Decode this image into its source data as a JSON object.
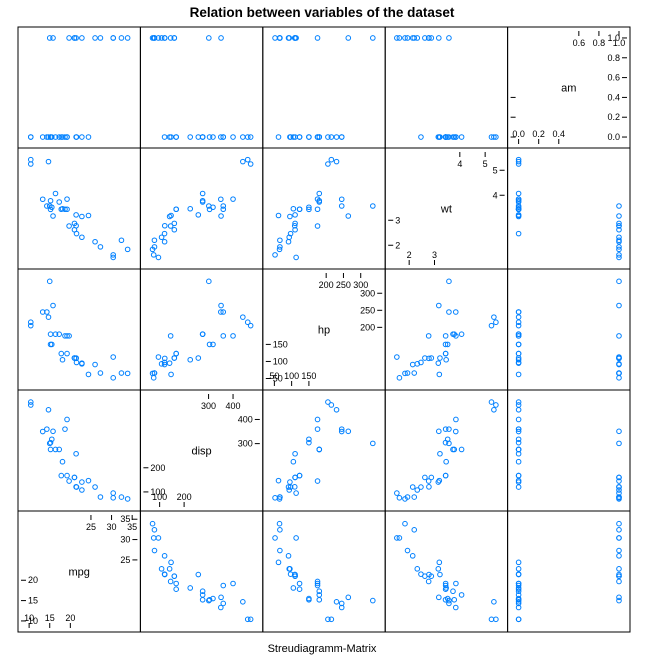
{
  "title": "Relation between variables of the dataset",
  "xlabel": "Streudiagramm-Matrix",
  "style": {
    "point_color": "#0080ff",
    "frame_color": "#000000",
    "background": "#ffffff"
  },
  "chart_data": {
    "type": "scatter-matrix",
    "title": "Relation between variables of the dataset",
    "xlabel": "Streudiagramm-Matrix",
    "variables": [
      {
        "name": "mpg",
        "range": [
          9.0,
          35.3
        ],
        "upper_ticks": [
          25,
          30,
          35
        ],
        "upper_tick_labels": [
          "25",
          "30",
          "35"
        ],
        "lower_ticks": [
          10,
          15,
          20
        ],
        "lower_tick_labels": [
          "10",
          "15",
          "20"
        ],
        "panel_ticks": [
          25,
          30,
          35
        ],
        "panel_tick_labels": [
          "25",
          "30",
          "35"
        ]
      },
      {
        "name": "disp",
        "range": [
          50,
          493
        ],
        "upper_ticks": [
          300,
          400
        ],
        "upper_tick_labels": [
          "300",
          "400"
        ],
        "lower_ticks": [
          100,
          200
        ],
        "lower_tick_labels": [
          "100",
          "200"
        ],
        "panel_ticks": [
          300,
          400
        ],
        "panel_tick_labels": [
          "300",
          "400"
        ]
      },
      {
        "name": "hp",
        "range": [
          36.8,
          350.6
        ],
        "upper_ticks": [
          200,
          250,
          300
        ],
        "upper_tick_labels": [
          "200",
          "250",
          "300"
        ],
        "lower_ticks": [
          50,
          100,
          150
        ],
        "lower_tick_labels": [
          "50",
          "100",
          "150"
        ],
        "panel_ticks": [
          200,
          250,
          300
        ],
        "panel_tick_labels": [
          "200",
          "250",
          "300"
        ]
      },
      {
        "name": "wt",
        "range": [
          1.33,
          5.61
        ],
        "upper_ticks": [
          4,
          5
        ],
        "upper_tick_labels": [
          "4",
          "5"
        ],
        "lower_ticks": [
          2,
          3
        ],
        "lower_tick_labels": [
          "2",
          "3"
        ],
        "panel_ticks": [
          4,
          5
        ],
        "panel_tick_labels": [
          "4",
          "5"
        ]
      },
      {
        "name": "am",
        "range": [
          -0.04,
          1.04
        ],
        "upper_ticks": [
          0.6,
          0.8,
          1.0
        ],
        "upper_tick_labels": [
          "0.6",
          "0.8",
          "1.0"
        ],
        "lower_ticks": [
          0.0,
          0.2,
          0.4
        ],
        "lower_tick_labels": [
          "0.0",
          "0.2",
          "0.4"
        ],
        "panel_ticks": [
          1.0,
          0.8,
          0.6
        ],
        "panel_tick_labels": [
          "1.0",
          "0.8",
          "0.6"
        ],
        "panel_ticks_low": [
          0.4,
          0.2,
          0.0
        ],
        "panel_tick_labels_low": [
          "0.4",
          "0.2",
          "0.0"
        ]
      }
    ],
    "observations": [
      {
        "mpg": 21.0,
        "disp": 160.0,
        "hp": 110,
        "wt": 2.62,
        "am": 1
      },
      {
        "mpg": 21.0,
        "disp": 160.0,
        "hp": 110,
        "wt": 2.875,
        "am": 1
      },
      {
        "mpg": 22.8,
        "disp": 108.0,
        "hp": 93,
        "wt": 2.32,
        "am": 1
      },
      {
        "mpg": 21.4,
        "disp": 258.0,
        "hp": 110,
        "wt": 3.215,
        "am": 0
      },
      {
        "mpg": 18.7,
        "disp": 360.0,
        "hp": 175,
        "wt": 3.44,
        "am": 0
      },
      {
        "mpg": 18.1,
        "disp": 225.0,
        "hp": 105,
        "wt": 3.46,
        "am": 0
      },
      {
        "mpg": 14.3,
        "disp": 360.0,
        "hp": 245,
        "wt": 3.57,
        "am": 0
      },
      {
        "mpg": 24.4,
        "disp": 146.7,
        "hp": 62,
        "wt": 3.19,
        "am": 0
      },
      {
        "mpg": 22.8,
        "disp": 140.8,
        "hp": 95,
        "wt": 3.15,
        "am": 0
      },
      {
        "mpg": 19.2,
        "disp": 167.6,
        "hp": 123,
        "wt": 3.44,
        "am": 0
      },
      {
        "mpg": 17.8,
        "disp": 167.6,
        "hp": 123,
        "wt": 3.44,
        "am": 0
      },
      {
        "mpg": 16.4,
        "disp": 275.8,
        "hp": 180,
        "wt": 4.07,
        "am": 0
      },
      {
        "mpg": 17.3,
        "disp": 275.8,
        "hp": 180,
        "wt": 3.73,
        "am": 0
      },
      {
        "mpg": 15.2,
        "disp": 275.8,
        "hp": 180,
        "wt": 3.78,
        "am": 0
      },
      {
        "mpg": 10.4,
        "disp": 472.0,
        "hp": 205,
        "wt": 5.25,
        "am": 0
      },
      {
        "mpg": 10.4,
        "disp": 460.0,
        "hp": 215,
        "wt": 5.424,
        "am": 0
      },
      {
        "mpg": 14.7,
        "disp": 440.0,
        "hp": 230,
        "wt": 5.345,
        "am": 0
      },
      {
        "mpg": 32.4,
        "disp": 78.7,
        "hp": 66,
        "wt": 2.2,
        "am": 1
      },
      {
        "mpg": 30.4,
        "disp": 75.7,
        "hp": 52,
        "wt": 1.615,
        "am": 1
      },
      {
        "mpg": 33.9,
        "disp": 71.1,
        "hp": 65,
        "wt": 1.835,
        "am": 1
      },
      {
        "mpg": 21.5,
        "disp": 120.1,
        "hp": 97,
        "wt": 2.465,
        "am": 0
      },
      {
        "mpg": 15.5,
        "disp": 318.0,
        "hp": 150,
        "wt": 3.52,
        "am": 0
      },
      {
        "mpg": 15.2,
        "disp": 304.0,
        "hp": 150,
        "wt": 3.435,
        "am": 0
      },
      {
        "mpg": 13.3,
        "disp": 350.0,
        "hp": 245,
        "wt": 3.84,
        "am": 0
      },
      {
        "mpg": 19.2,
        "disp": 400.0,
        "hp": 175,
        "wt": 3.845,
        "am": 0
      },
      {
        "mpg": 27.3,
        "disp": 79.0,
        "hp": 66,
        "wt": 1.935,
        "am": 1
      },
      {
        "mpg": 26.0,
        "disp": 120.3,
        "hp": 91,
        "wt": 2.14,
        "am": 1
      },
      {
        "mpg": 30.4,
        "disp": 95.1,
        "hp": 113,
        "wt": 1.513,
        "am": 1
      },
      {
        "mpg": 15.8,
        "disp": 351.0,
        "hp": 264,
        "wt": 3.17,
        "am": 1
      },
      {
        "mpg": 19.7,
        "disp": 145.0,
        "hp": 175,
        "wt": 2.77,
        "am": 1
      },
      {
        "mpg": 15.0,
        "disp": 301.0,
        "hp": 335,
        "wt": 3.57,
        "am": 1
      },
      {
        "mpg": 21.4,
        "disp": 121.0,
        "hp": 109,
        "wt": 2.78,
        "am": 1
      }
    ]
  }
}
